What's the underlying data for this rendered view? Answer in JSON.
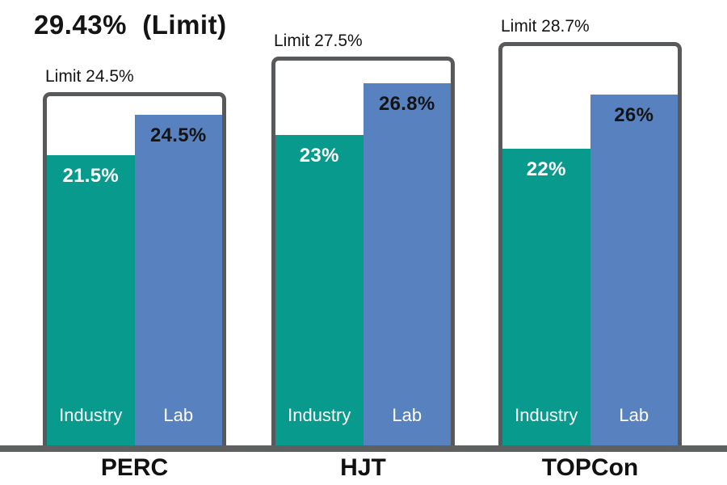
{
  "title": "29.43%  (Limit)",
  "chart_data": {
    "type": "bar",
    "title": "29.43% (Limit)",
    "unit": "%",
    "ylim": [
      0,
      29.43
    ],
    "theoretical_limit": 29.43,
    "categories": [
      "PERC",
      "HJT",
      "TOPCon"
    ],
    "series": [
      {
        "name": "Industry",
        "values": [
          21.5,
          23,
          22
        ]
      },
      {
        "name": "Lab",
        "values": [
          24.5,
          26.8,
          26
        ]
      }
    ],
    "limits": [
      24.5,
      27.5,
      28.7
    ],
    "legend_position": "inside-bars",
    "grid": false,
    "groups": [
      {
        "category": "PERC",
        "limit": 24.5,
        "limit_label": "Limit 24.5%",
        "industry_value": 21.5,
        "industry_label": "21.5%",
        "lab_value": 24.5,
        "lab_label": "24.5%"
      },
      {
        "category": "HJT",
        "limit": 27.5,
        "limit_label": "Limit 27.5%",
        "industry_value": 23,
        "industry_label": "23%",
        "lab_value": 26.8,
        "lab_label": "26.8%"
      },
      {
        "category": "TOPCon",
        "limit": 28.7,
        "limit_label": "Limit 28.7%",
        "industry_value": 22,
        "industry_label": "22%",
        "lab_value": 26,
        "lab_label": "26%"
      }
    ],
    "series_labels": {
      "industry": "Industry",
      "lab": "Lab"
    }
  },
  "colors": {
    "industry": "#089a8d",
    "lab": "#5781bf",
    "box_border": "#58595a",
    "axis": "#5e6060",
    "text_dark": "#141414",
    "text_light": "#ffffff",
    "background": "#ffffff"
  }
}
